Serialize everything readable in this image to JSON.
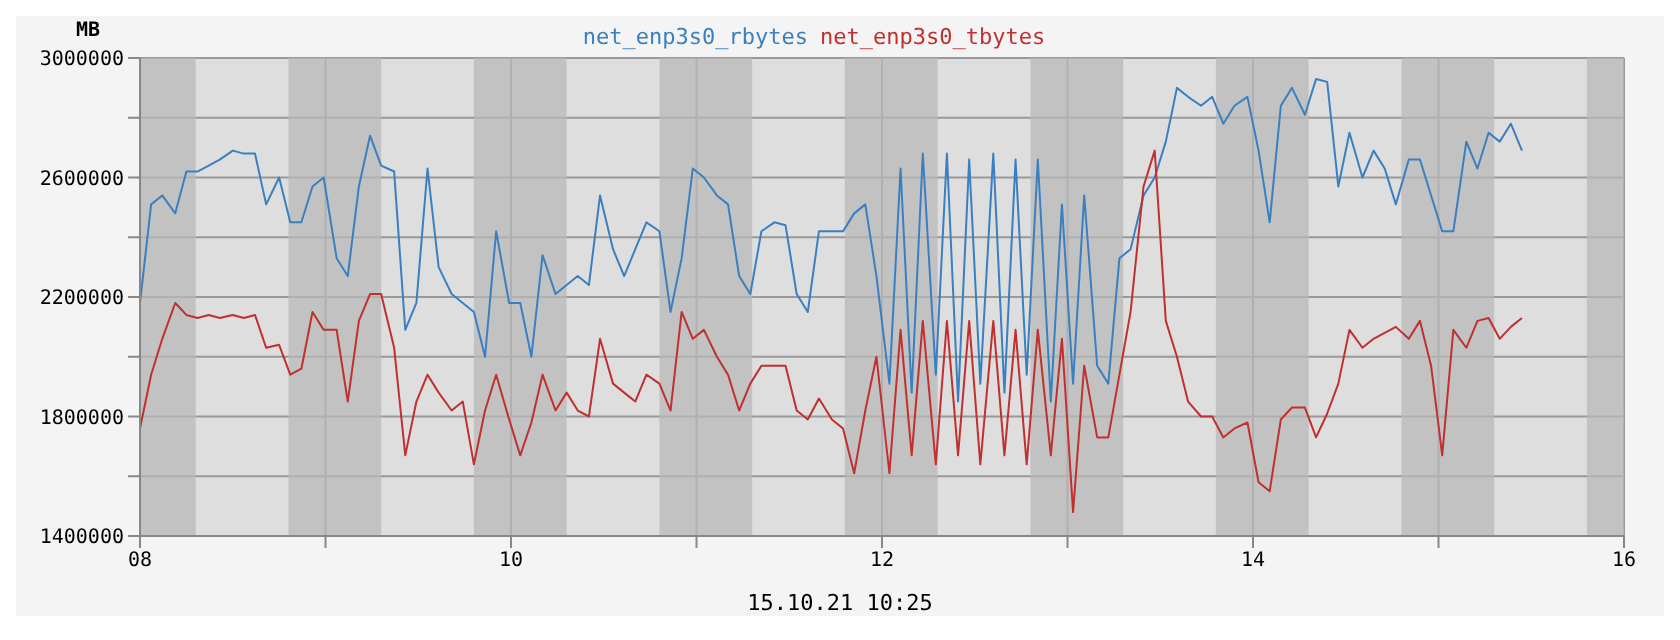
{
  "chart_data": {
    "type": "line",
    "ylabel": "MB",
    "annotations": [
      "15.10.21 10:25"
    ],
    "legend": "top",
    "grid": true,
    "marker": "none",
    "line_style": "solid",
    "xlim": [
      8,
      16
    ],
    "xticks": [
      {
        "value": 8,
        "label": "08"
      },
      {
        "value": 9,
        "label": null
      },
      {
        "value": 10,
        "label": "10"
      },
      {
        "value": 11,
        "label": null
      },
      {
        "value": 12,
        "label": "12"
      },
      {
        "value": 13,
        "label": null
      },
      {
        "value": 14,
        "label": "14"
      },
      {
        "value": 15,
        "label": null
      },
      {
        "value": 16,
        "label": "16"
      }
    ],
    "ylim": [
      1400000,
      3000000
    ],
    "yticks": [
      1400000,
      {
        "value": 1600000,
        "label": null
      },
      1800000,
      {
        "value": 2000000,
        "label": null
      },
      2200000,
      {
        "value": 2400000,
        "label": null
      },
      2600000,
      {
        "value": 2800000,
        "label": null
      },
      3000000
    ],
    "bands": [
      {
        "axis": "x",
        "from": 8,
        "to": 8.3,
        "color": "#b8b8b8"
      },
      {
        "axis": "x",
        "from": 8.8,
        "to": 9.3,
        "color": "#b8b8b8"
      },
      {
        "axis": "x",
        "from": 9.8,
        "to": 10.3,
        "color": "#b8b8b8"
      },
      {
        "axis": "x",
        "from": 10.8,
        "to": 11.3,
        "color": "#b8b8b8"
      },
      {
        "axis": "x",
        "from": 11.8,
        "to": 12.3,
        "color": "#b8b8b8"
      },
      {
        "axis": "x",
        "from": 12.8,
        "to": 13.3,
        "color": "#b8b8b8"
      },
      {
        "axis": "x",
        "from": 13.8,
        "to": 14.3,
        "color": "#b8b8b8"
      },
      {
        "axis": "x",
        "from": 14.8,
        "to": 15.3,
        "color": "#b8b8b8"
      },
      {
        "axis": "x",
        "from": 15.8,
        "to": 16,
        "color": "#b8b8b8"
      }
    ],
    "x": [
      8.0,
      8.06,
      8.12,
      8.19,
      8.25,
      8.31,
      8.37,
      8.43,
      8.5,
      8.56,
      8.62,
      8.68,
      8.75,
      8.81,
      8.87,
      8.93,
      8.99,
      9.06,
      9.12,
      9.18,
      9.24,
      9.3,
      9.37,
      9.43,
      9.49,
      9.55,
      9.61,
      9.68,
      9.74,
      9.8,
      9.86,
      9.92,
      9.99,
      10.05,
      10.11,
      10.17,
      10.24,
      10.3,
      10.36,
      10.42,
      10.48,
      10.55,
      10.61,
      10.67,
      10.73,
      10.8,
      10.86,
      10.92,
      10.98,
      11.04,
      11.11,
      11.17,
      11.23,
      11.29,
      11.35,
      11.42,
      11.48,
      11.54,
      11.6,
      11.66,
      11.73,
      11.79,
      11.85,
      11.91,
      11.97,
      12.04,
      12.1,
      12.16,
      12.22,
      12.29,
      12.35,
      12.41,
      12.47,
      12.53,
      12.6,
      12.66,
      12.72,
      12.78,
      12.84,
      12.91,
      12.97,
      13.03,
      13.09,
      13.16,
      13.22,
      13.28,
      13.34,
      13.41,
      13.47,
      13.53,
      13.59,
      13.65,
      13.72,
      13.78,
      13.84,
      13.9,
      13.97,
      14.03,
      14.09,
      14.15,
      14.21,
      14.28,
      14.34,
      14.4,
      14.46,
      14.52,
      14.59,
      14.65,
      14.71,
      14.77,
      14.84,
      14.9,
      14.96,
      15.02,
      15.08,
      15.15,
      15.21,
      15.27,
      15.33,
      15.39,
      15.45
    ],
    "series": [
      {
        "name": "net_enp3s0_rbytes",
        "color": "#3a80c0",
        "values": [
          2180000,
          2510000,
          2540000,
          2480000,
          2620000,
          2620000,
          2640000,
          2660000,
          2690000,
          2680000,
          2680000,
          2510000,
          2600000,
          2450000,
          2450000,
          2570000,
          2600000,
          2330000,
          2270000,
          2570000,
          2740000,
          2640000,
          2620000,
          2090000,
          2180000,
          2630000,
          2300000,
          2210000,
          2180000,
          2150000,
          2000000,
          2420000,
          2180000,
          2180000,
          2000000,
          2340000,
          2210000,
          2240000,
          2270000,
          2240000,
          2540000,
          2360000,
          2270000,
          2360000,
          2450000,
          2420000,
          2150000,
          2330000,
          2630000,
          2600000,
          2540000,
          2510000,
          2270000,
          2210000,
          2420000,
          2450000,
          2440000,
          2210000,
          2150000,
          2420000,
          2420000,
          2420000,
          2480000,
          2510000,
          2270000,
          1910000,
          2630000,
          1880000,
          2680000,
          1940000,
          2680000,
          1850000,
          2660000,
          1910000,
          2680000,
          1880000,
          2660000,
          1940000,
          2660000,
          1850000,
          2510000,
          1910000,
          2540000,
          1970000,
          1910000,
          2330000,
          2360000,
          2540000,
          2600000,
          2720000,
          2900000,
          2870000,
          2840000,
          2870000,
          2780000,
          2840000,
          2870000,
          2690000,
          2450000,
          2840000,
          2900000,
          2810000,
          2930000,
          2920000,
          2570000,
          2750000,
          2600000,
          2690000,
          2630000,
          2510000,
          2660000,
          2660000,
          2540000,
          2420000,
          2420000,
          2720000,
          2630000,
          2750000,
          2720000,
          2780000,
          2690000
        ]
      },
      {
        "name": "net_enp3s0_tbytes",
        "color": "#c03030",
        "values": [
          1760000,
          1940000,
          2060000,
          2180000,
          2140000,
          2130000,
          2140000,
          2130000,
          2140000,
          2130000,
          2140000,
          2030000,
          2040000,
          1940000,
          1960000,
          2150000,
          2090000,
          2090000,
          1850000,
          2120000,
          2210000,
          2210000,
          2030000,
          1670000,
          1850000,
          1940000,
          1880000,
          1820000,
          1850000,
          1640000,
          1820000,
          1940000,
          1790000,
          1670000,
          1780000,
          1940000,
          1820000,
          1880000,
          1820000,
          1800000,
          2060000,
          1910000,
          1880000,
          1850000,
          1940000,
          1910000,
          1820000,
          2150000,
          2060000,
          2090000,
          2000000,
          1940000,
          1820000,
          1910000,
          1970000,
          1970000,
          1970000,
          1820000,
          1790000,
          1860000,
          1790000,
          1760000,
          1610000,
          1820000,
          2000000,
          1610000,
          2090000,
          1670000,
          2120000,
          1640000,
          2120000,
          1670000,
          2120000,
          1640000,
          2120000,
          1670000,
          2090000,
          1640000,
          2090000,
          1670000,
          2060000,
          1480000,
          1970000,
          1730000,
          1730000,
          1940000,
          2150000,
          2570000,
          2690000,
          2120000,
          2000000,
          1850000,
          1800000,
          1800000,
          1730000,
          1760000,
          1780000,
          1580000,
          1550000,
          1790000,
          1830000,
          1830000,
          1730000,
          1810000,
          1910000,
          2090000,
          2030000,
          2060000,
          2080000,
          2100000,
          2060000,
          2120000,
          1970000,
          1670000,
          2090000,
          2030000,
          2120000,
          2130000,
          2060000,
          2100000,
          2130000
        ]
      }
    ]
  }
}
